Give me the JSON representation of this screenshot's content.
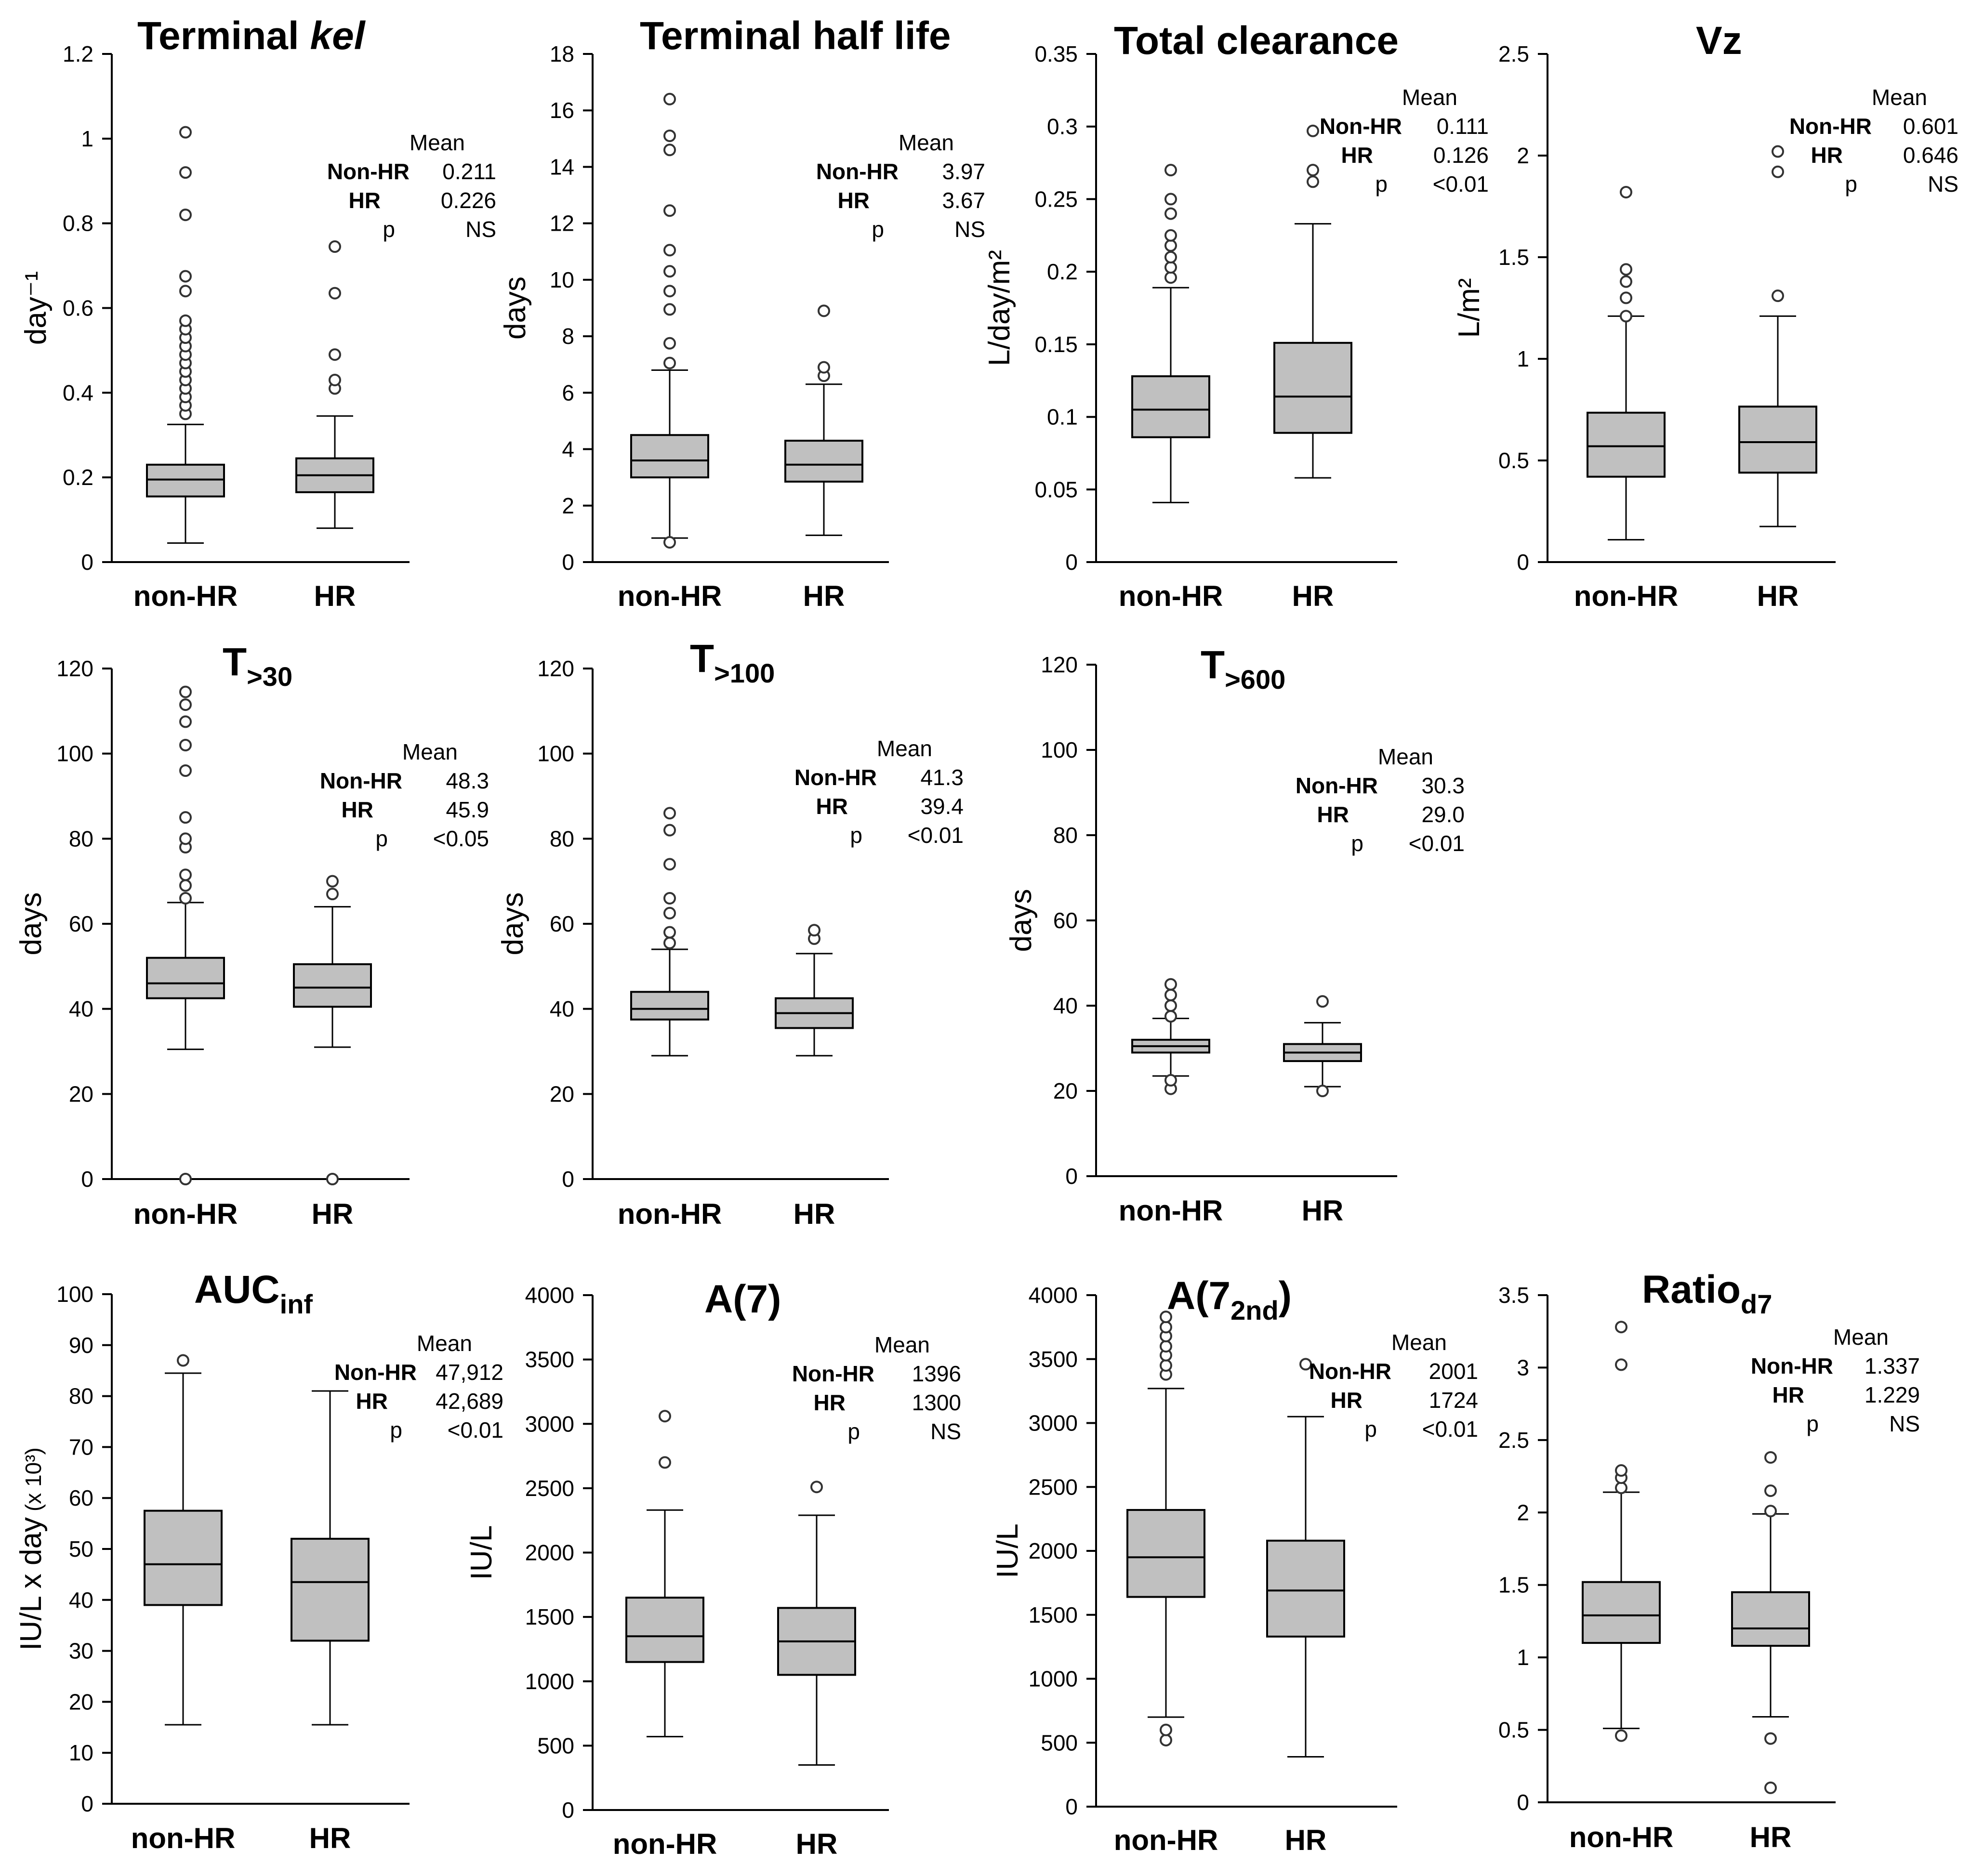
{
  "chart_data": [
    {
      "id": "kel",
      "type": "box",
      "title": "Terminal ",
      "title_sub": "kel",
      "ylabel": "day⁻¹",
      "ylim": [
        0,
        1.2
      ],
      "yticks": [
        0,
        0.2,
        0.4,
        0.6,
        0.8,
        1,
        1.2
      ],
      "ytick_labels": [
        "0",
        "0.2",
        "0.4",
        "0.6",
        "0.8",
        "1",
        "1.2"
      ],
      "categories": [
        "non-HR",
        "HR"
      ],
      "boxes": [
        {
          "group": "non-HR",
          "whisker_low": 0.045,
          "q1": 0.155,
          "median": 0.195,
          "q3": 0.23,
          "whisker_high": 0.325,
          "outliers": [
            0.35,
            0.37,
            0.39,
            0.41,
            0.43,
            0.45,
            0.47,
            0.49,
            0.51,
            0.53,
            0.55,
            0.57,
            0.64,
            0.675,
            0.82,
            0.92,
            1.015
          ]
        },
        {
          "group": "HR",
          "whisker_low": 0.08,
          "q1": 0.165,
          "median": 0.205,
          "q3": 0.245,
          "whisker_high": 0.345,
          "outliers": [
            0.41,
            0.43,
            0.49,
            0.635,
            0.745
          ]
        }
      ],
      "stats": {
        "header": "Mean",
        "row1_label": "Non-HR",
        "row1_value": "0.211",
        "row2_label": "HR",
        "row2_value": "0.226",
        "p_label": "p",
        "p_value": "NS"
      }
    },
    {
      "id": "halflife",
      "type": "box",
      "title": "Terminal half life",
      "title_sub": "",
      "ylabel": "days",
      "ylim": [
        0,
        18
      ],
      "yticks": [
        0,
        2,
        4,
        6,
        8,
        10,
        12,
        14,
        16,
        18
      ],
      "ytick_labels": [
        "0",
        "2",
        "4",
        "6",
        "8",
        "10",
        "12",
        "14",
        "16",
        "18"
      ],
      "categories": [
        "non-HR",
        "HR"
      ],
      "boxes": [
        {
          "group": "non-HR",
          "whisker_low": 0.85,
          "q1": 3.0,
          "median": 3.6,
          "q3": 4.5,
          "whisker_high": 6.8,
          "outliers": [
            0.7,
            7.05,
            7.75,
            8.95,
            9.6,
            10.3,
            11.05,
            12.45,
            14.6,
            15.1,
            16.4
          ]
        },
        {
          "group": "HR",
          "whisker_low": 0.95,
          "q1": 2.85,
          "median": 3.45,
          "q3": 4.3,
          "whisker_high": 6.3,
          "outliers": [
            6.6,
            6.9,
            8.9
          ]
        }
      ],
      "stats": {
        "header": "Mean",
        "row1_label": "Non-HR",
        "row1_value": "3.97",
        "row2_label": "HR",
        "row2_value": "3.67",
        "p_label": "p",
        "p_value": "NS"
      }
    },
    {
      "id": "clearance",
      "type": "box",
      "title": "Total clearance",
      "title_sub": "",
      "ylabel": "L/day/m²",
      "ylim": [
        0,
        0.35
      ],
      "yticks": [
        0,
        0.05,
        0.1,
        0.15,
        0.2,
        0.25,
        0.3,
        0.35
      ],
      "ytick_labels": [
        "0",
        "0.05",
        "0.1",
        "0.15",
        "0.2",
        "0.25",
        "0.3",
        "0.35"
      ],
      "categories": [
        "non-HR",
        "HR"
      ],
      "boxes": [
        {
          "group": "non-HR",
          "whisker_low": 0.041,
          "q1": 0.086,
          "median": 0.105,
          "q3": 0.128,
          "whisker_high": 0.189,
          "outliers": [
            0.196,
            0.203,
            0.21,
            0.218,
            0.225,
            0.24,
            0.25,
            0.27
          ]
        },
        {
          "group": "HR",
          "whisker_low": 0.058,
          "q1": 0.089,
          "median": 0.114,
          "q3": 0.151,
          "whisker_high": 0.233,
          "outliers": [
            0.262,
            0.27,
            0.297
          ]
        }
      ],
      "stats": {
        "header": "Mean",
        "row1_label": "Non-HR",
        "row1_value": "0.111",
        "row2_label": "HR",
        "row2_value": "0.126",
        "p_label": "p",
        "p_value": "<0.01"
      }
    },
    {
      "id": "vz",
      "type": "box",
      "title": "Vz",
      "title_sub": "",
      "ylabel": "L/m²",
      "ylim": [
        0,
        2.5
      ],
      "yticks": [
        0,
        0.5,
        1,
        1.5,
        2,
        2.5
      ],
      "ytick_labels": [
        "0",
        "0.5",
        "1",
        "1.5",
        "2",
        "2.5"
      ],
      "categories": [
        "non-HR",
        "HR"
      ],
      "boxes": [
        {
          "group": "non-HR",
          "whisker_low": 0.11,
          "q1": 0.42,
          "median": 0.57,
          "q3": 0.735,
          "whisker_high": 1.21,
          "outliers": [
            1.21,
            1.3,
            1.38,
            1.44,
            1.82
          ]
        },
        {
          "group": "HR",
          "whisker_low": 0.175,
          "q1": 0.44,
          "median": 0.59,
          "q3": 0.765,
          "whisker_high": 1.21,
          "outliers": [
            1.31,
            1.92,
            2.02
          ]
        }
      ],
      "stats": {
        "header": "Mean",
        "row1_label": "Non-HR",
        "row1_value": "0.601",
        "row2_label": "HR",
        "row2_value": "0.646",
        "p_label": "p",
        "p_value": "NS"
      }
    },
    {
      "id": "t30",
      "type": "box",
      "title": "T",
      "title_sub": ">30",
      "ylabel": "days",
      "ylim": [
        0,
        120
      ],
      "yticks": [
        0,
        20,
        40,
        60,
        80,
        100,
        120
      ],
      "ytick_labels": [
        "0",
        "20",
        "40",
        "60",
        "80",
        "100",
        "120"
      ],
      "categories": [
        "non-HR",
        "HR"
      ],
      "boxes": [
        {
          "group": "non-HR",
          "whisker_low": 30.5,
          "q1": 42.5,
          "median": 46,
          "q3": 52,
          "whisker_high": 65,
          "outliers": [
            0,
            66,
            69,
            71.5,
            78,
            80,
            85,
            96,
            102,
            107.5,
            111.5,
            114.5
          ]
        },
        {
          "group": "HR",
          "whisker_low": 31,
          "q1": 40.5,
          "median": 45,
          "q3": 50.5,
          "whisker_high": 64,
          "outliers": [
            0,
            67,
            70
          ]
        }
      ],
      "stats": {
        "header": "Mean",
        "row1_label": "Non-HR",
        "row1_value": "48.3",
        "row2_label": "HR",
        "row2_value": "45.9",
        "p_label": "p",
        "p_value": "<0.05"
      }
    },
    {
      "id": "t100",
      "type": "box",
      "title": "T",
      "title_sub": ">100",
      "ylabel": "days",
      "ylim": [
        0,
        120
      ],
      "yticks": [
        0,
        20,
        40,
        60,
        80,
        100,
        120
      ],
      "ytick_labels": [
        "0",
        "20",
        "40",
        "60",
        "80",
        "100",
        "120"
      ],
      "categories": [
        "non-HR",
        "HR"
      ],
      "boxes": [
        {
          "group": "non-HR",
          "whisker_low": 29,
          "q1": 37.5,
          "median": 40,
          "q3": 44,
          "whisker_high": 54,
          "outliers": [
            55.5,
            58,
            62.5,
            66,
            74,
            82,
            86
          ]
        },
        {
          "group": "HR",
          "whisker_low": 29,
          "q1": 35.5,
          "median": 39,
          "q3": 42.5,
          "whisker_high": 53,
          "outliers": [
            56.5,
            58.5
          ]
        }
      ],
      "stats": {
        "header": "Mean",
        "row1_label": "Non-HR",
        "row1_value": "41.3",
        "row2_label": "HR",
        "row2_value": "39.4",
        "p_label": "p",
        "p_value": "<0.01"
      }
    },
    {
      "id": "t600",
      "type": "box",
      "title": "T",
      "title_sub": ">600",
      "ylabel": "days",
      "ylim": [
        0,
        120
      ],
      "yticks": [
        0,
        20,
        40,
        60,
        80,
        100,
        120
      ],
      "ytick_labels": [
        "0",
        "20",
        "40",
        "60",
        "80",
        "100",
        "120"
      ],
      "categories": [
        "non-HR",
        "HR"
      ],
      "boxes": [
        {
          "group": "non-HR",
          "whisker_low": 23.5,
          "q1": 29,
          "median": 30.5,
          "q3": 32,
          "whisker_high": 37,
          "outliers": [
            20.5,
            22.5,
            37.5,
            40,
            42.5,
            45
          ]
        },
        {
          "group": "HR",
          "whisker_low": 21,
          "q1": 27,
          "median": 29,
          "q3": 31,
          "whisker_high": 36,
          "outliers": [
            20,
            41
          ]
        }
      ],
      "stats": {
        "header": "Mean",
        "row1_label": "Non-HR",
        "row1_value": "30.3",
        "row2_label": "HR",
        "row2_value": "29.0",
        "p_label": "p",
        "p_value": "<0.01"
      }
    },
    {
      "id": "auc",
      "type": "box",
      "title": "AUC",
      "title_sub": "inf",
      "ylabel": "IU/L x day",
      "ylabel_suffix": "(x 10³)",
      "ylim": [
        0,
        100
      ],
      "yticks": [
        0,
        10,
        20,
        30,
        40,
        50,
        60,
        70,
        80,
        90,
        100
      ],
      "ytick_labels": [
        "0",
        "10",
        "20",
        "30",
        "40",
        "50",
        "60",
        "70",
        "80",
        "90",
        "100"
      ],
      "categories": [
        "non-HR",
        "HR"
      ],
      "boxes": [
        {
          "group": "non-HR",
          "whisker_low": 15.5,
          "q1": 39,
          "median": 47,
          "q3": 57.5,
          "whisker_high": 84.5,
          "outliers": [
            87
          ]
        },
        {
          "group": "HR",
          "whisker_low": 15.5,
          "q1": 32,
          "median": 43.5,
          "q3": 52,
          "whisker_high": 81,
          "outliers": []
        }
      ],
      "stats": {
        "header": "Mean",
        "row1_label": "Non-HR",
        "row1_value": "47,912",
        "row2_label": "HR",
        "row2_value": "42,689",
        "p_label": "p",
        "p_value": "<0.01"
      }
    },
    {
      "id": "a7",
      "type": "box",
      "title": "A(7)",
      "title_sub": "",
      "ylabel": "IU/L",
      "ylim": [
        0,
        4000
      ],
      "yticks": [
        0,
        500,
        1000,
        1500,
        2000,
        2500,
        3000,
        3500,
        4000
      ],
      "ytick_labels": [
        "0",
        "500",
        "1000",
        "1500",
        "2000",
        "2500",
        "3000",
        "3500",
        "4000"
      ],
      "categories": [
        "non-HR",
        "HR"
      ],
      "boxes": [
        {
          "group": "non-HR",
          "whisker_low": 570,
          "q1": 1150,
          "median": 1350,
          "q3": 1650,
          "whisker_high": 2330,
          "outliers": [
            2700,
            3060
          ]
        },
        {
          "group": "HR",
          "whisker_low": 350,
          "q1": 1050,
          "median": 1310,
          "q3": 1570,
          "whisker_high": 2290,
          "outliers": [
            2510
          ]
        }
      ],
      "stats": {
        "header": "Mean",
        "row1_label": "Non-HR",
        "row1_value": "1396",
        "row2_label": "HR",
        "row2_value": "1300",
        "p_label": "p",
        "p_value": "NS"
      }
    },
    {
      "id": "a7nd",
      "type": "box",
      "title": "A(7",
      "title_sub": "2nd",
      "title_end": ")",
      "ylabel": "IU/L",
      "ylim": [
        0,
        4000
      ],
      "yticks": [
        0,
        500,
        1000,
        1500,
        2000,
        2500,
        3000,
        3500,
        4000
      ],
      "ytick_labels": [
        "0",
        "500",
        "1000",
        "1500",
        "2000",
        "2500",
        "3000",
        "3500",
        "4000"
      ],
      "categories": [
        "non-HR",
        "HR"
      ],
      "boxes": [
        {
          "group": "non-HR",
          "whisker_low": 700,
          "q1": 1640,
          "median": 1950,
          "q3": 2320,
          "whisker_high": 3270,
          "outliers": [
            520,
            600,
            3380,
            3450,
            3530,
            3600,
            3680,
            3750,
            3830
          ]
        },
        {
          "group": "HR",
          "whisker_low": 390,
          "q1": 1330,
          "median": 1690,
          "q3": 2080,
          "whisker_high": 3050,
          "outliers": [
            3460
          ]
        }
      ],
      "stats": {
        "header": "Mean",
        "row1_label": "Non-HR",
        "row1_value": "2001",
        "row2_label": "HR",
        "row2_value": "1724",
        "p_label": "p",
        "p_value": "<0.01"
      }
    },
    {
      "id": "ratio",
      "type": "box",
      "title": "Ratio",
      "title_sub": "d7",
      "ylabel": "",
      "ylim": [
        0,
        3.5
      ],
      "yticks": [
        0,
        0.5,
        1,
        1.5,
        2,
        2.5,
        3,
        3.5
      ],
      "ytick_labels": [
        "0",
        "0.5",
        "1",
        "1.5",
        "2",
        "2.5",
        "3",
        "3.5"
      ],
      "categories": [
        "non-HR",
        "HR"
      ],
      "boxes": [
        {
          "group": "non-HR",
          "whisker_low": 0.51,
          "q1": 1.1,
          "median": 1.29,
          "q3": 1.52,
          "whisker_high": 2.14,
          "outliers": [
            0.46,
            2.17,
            2.24,
            2.29,
            3.02,
            3.28
          ]
        },
        {
          "group": "HR",
          "whisker_low": 0.59,
          "q1": 1.08,
          "median": 1.2,
          "q3": 1.45,
          "whisker_high": 1.99,
          "outliers": [
            0.1,
            0.44,
            2.01,
            2.15,
            2.38
          ]
        }
      ],
      "stats": {
        "header": "Mean",
        "row1_label": "Non-HR",
        "row1_value": "1.337",
        "row2_label": "HR",
        "row2_value": "1.229",
        "p_label": "p",
        "p_value": "NS"
      }
    }
  ]
}
